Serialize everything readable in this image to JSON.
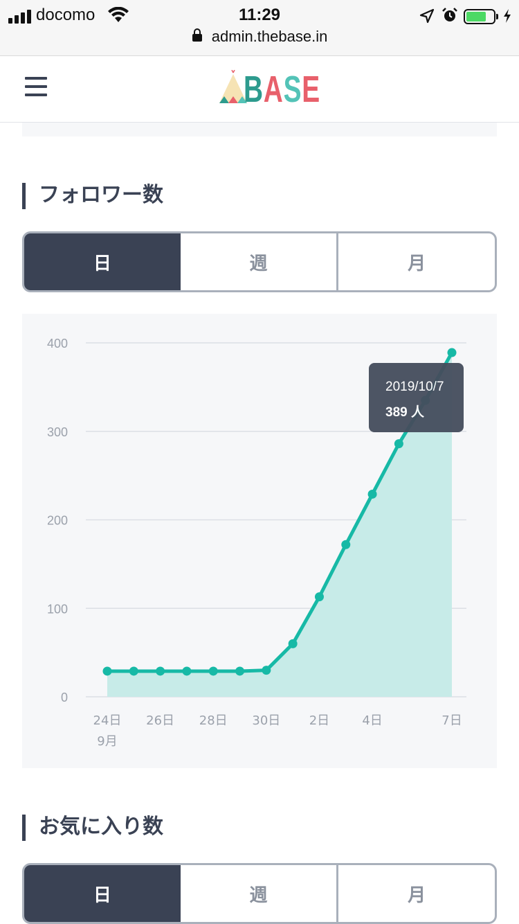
{
  "status_bar": {
    "carrier": "docomo",
    "time": "11:29",
    "battery_level": 0.65,
    "url": "admin.thebase.in"
  },
  "header": {
    "logo_text": [
      "B",
      "A",
      "S",
      "E"
    ]
  },
  "followers": {
    "title": "フォロワー数",
    "tabs": [
      "日",
      "週",
      "月"
    ],
    "active_tab": 0
  },
  "favorites": {
    "title": "お気に入り数",
    "tabs": [
      "日",
      "週",
      "月"
    ],
    "active_tab": 0
  },
  "tooltip": {
    "date": "2019/10/7",
    "value": "389 人"
  },
  "colors": {
    "dark_navy": "#3a4254",
    "teal": "#17b9a6",
    "teal_fill": "#c7ebe8"
  },
  "chart_data": {
    "type": "area",
    "ylim": [
      0,
      400
    ],
    "y_ticks": [
      0,
      100,
      200,
      300,
      400
    ],
    "x_tick_labels": [
      "24日",
      "26日",
      "28日",
      "30日",
      "2日",
      "4日",
      "7日"
    ],
    "x_sub_label": "9月",
    "series": [
      {
        "x": [
          "9/24",
          "9/25",
          "9/26",
          "9/27",
          "9/28",
          "9/29",
          "9/30",
          "10/1",
          "10/2",
          "10/3",
          "10/4",
          "10/5",
          "10/6",
          "10/7"
        ],
        "values": [
          29,
          29,
          29,
          29,
          29,
          29,
          30,
          60,
          113,
          172,
          229,
          286,
          335,
          389
        ]
      }
    ],
    "grid": true,
    "legend": "none"
  }
}
